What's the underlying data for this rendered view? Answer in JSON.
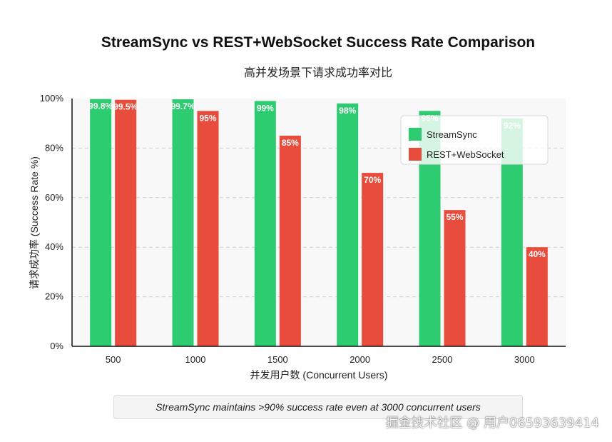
{
  "chart_data": {
    "type": "bar",
    "title": "StreamSync vs REST+WebSocket Success Rate Comparison",
    "subtitle": "高并发场景下请求成功率对比",
    "xlabel": "并发用户数 (Concurrent Users)",
    "ylabel": "请求成功率 (Success Rate %)",
    "categories": [
      "500",
      "1000",
      "1500",
      "2000",
      "2500",
      "3000"
    ],
    "ylim": [
      0,
      100
    ],
    "yticks": [
      "0%",
      "20%",
      "40%",
      "60%",
      "80%",
      "100%"
    ],
    "ytick_values": [
      0,
      20,
      40,
      60,
      80,
      100
    ],
    "grid": true,
    "legend_position": "top-right",
    "series": [
      {
        "name": "StreamSync",
        "color": "#2ecc71",
        "values": [
          99.8,
          99.7,
          99,
          98,
          95,
          92
        ],
        "labels": [
          "99.8%",
          "99.7%",
          "99%",
          "98%",
          "95%",
          "92%"
        ]
      },
      {
        "name": "REST+WebSocket",
        "color": "#e74c3c",
        "values": [
          99.5,
          95,
          85,
          70,
          55,
          40
        ],
        "labels": [
          "99.5%",
          "95%",
          "85%",
          "70%",
          "55%",
          "40%"
        ]
      }
    ]
  },
  "note": "StreamSync maintains >90% success rate even at 3000 concurrent users",
  "watermark": "掘金技术社区 @ 用户06593639414"
}
